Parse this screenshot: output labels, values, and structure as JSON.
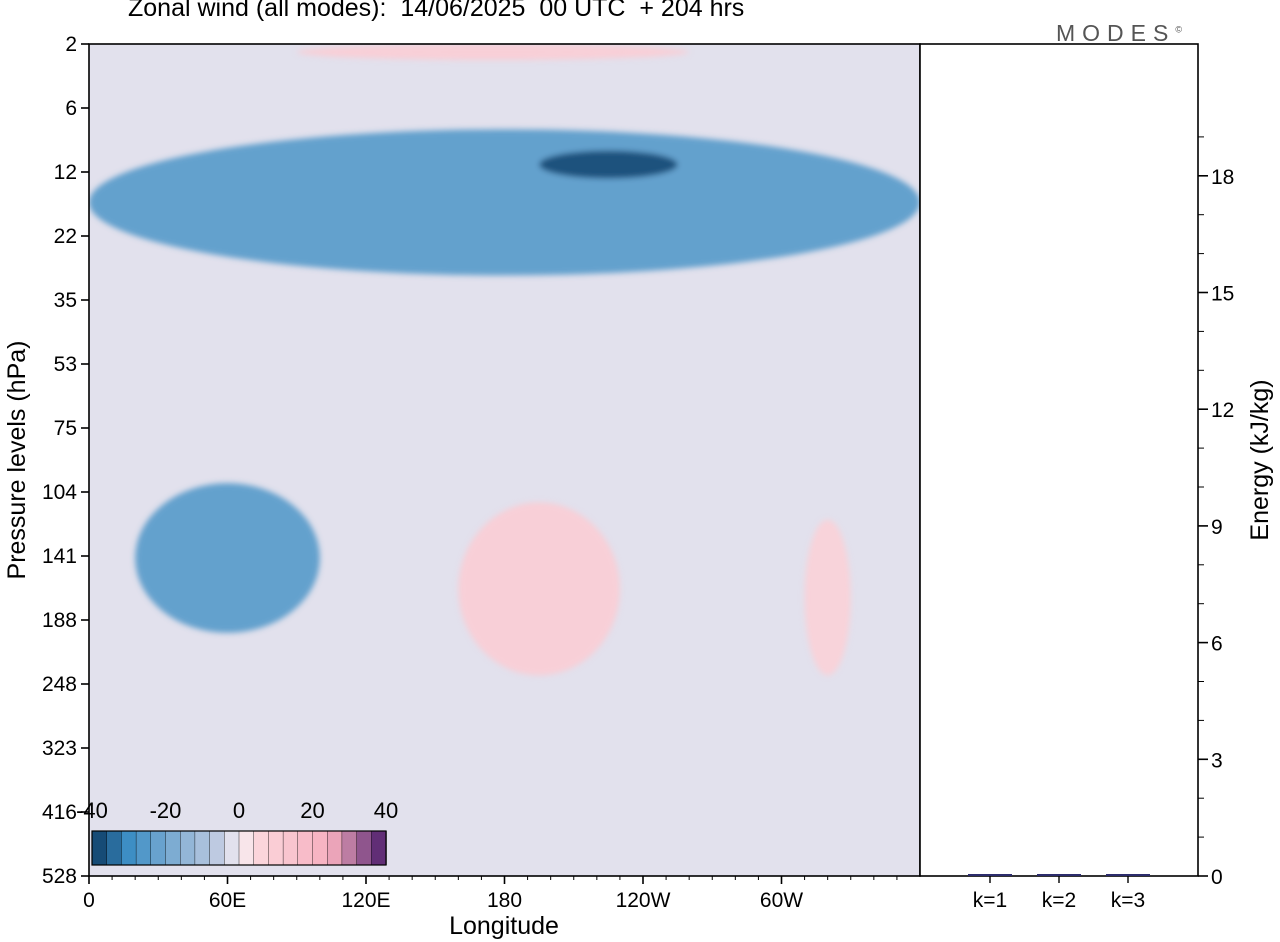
{
  "chart_data": [
    {
      "type": "heatmap",
      "title": "Zonal wind (all modes):  14/06/2025  00 UTC  + 204 hrs",
      "xlabel": "Longitude",
      "ylabel": "Pressure levels (hPa)",
      "x_ticks": [
        "0",
        "60E",
        "120E",
        "180",
        "120W",
        "60W"
      ],
      "y_ticks": [
        "2",
        "6",
        "12",
        "22",
        "35",
        "53",
        "75",
        "104",
        "141",
        "188",
        "248",
        "323",
        "416",
        "528"
      ],
      "colorbar": {
        "ticks": [
          "-40",
          "-20",
          "0",
          "20",
          "40"
        ],
        "range": [
          -40,
          40
        ]
      },
      "colors": {
        "neg_strong": "#0c3a63",
        "neg_mid": "#3d8ec4",
        "neg_weak": "#c3cde2",
        "near_zero": "#f6eef4",
        "pos_weak": "#fbd7dc",
        "pos_mid": "#f6aebf",
        "pos_strong": "#4a1a6b"
      },
      "features": [
        {
          "label": "easterly band",
          "lon_range": [
            0,
            360
          ],
          "p_range": [
            8,
            30
          ],
          "value": -25
        },
        {
          "label": "easterly core",
          "lon_range": [
            195,
            255
          ],
          "p_range": [
            10,
            13
          ],
          "value": -38
        },
        {
          "label": "upper westerlies",
          "lon_range": [
            90,
            260
          ],
          "p_range": [
            2,
            3
          ],
          "value": 10
        },
        {
          "label": "easterly jet",
          "lon_range": [
            20,
            100
          ],
          "p_range": [
            100,
            200
          ],
          "value": -25
        },
        {
          "label": "westerly region",
          "lon_range": [
            160,
            230
          ],
          "p_range": [
            110,
            240
          ],
          "value": 10
        },
        {
          "label": "westerly patch",
          "lon_range": [
            310,
            330
          ],
          "p_range": [
            120,
            240
          ],
          "value": 8
        }
      ]
    },
    {
      "type": "bar",
      "ylabel": "Energy (kJ/kg)",
      "categories": [
        "k=1",
        "k=2",
        "k=3"
      ],
      "values": [
        0.04,
        0.03,
        0.02
      ],
      "ylim": [
        0,
        20
      ],
      "y_ticks": [
        "0",
        "3",
        "6",
        "9",
        "12",
        "15",
        "18"
      ]
    }
  ],
  "header": {
    "title": "Zonal wind (all modes):  14/06/2025  00 UTC  + 204 hrs",
    "brand": "MODES"
  }
}
